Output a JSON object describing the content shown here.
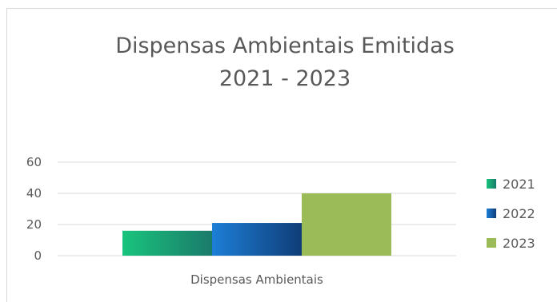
{
  "chart_data": {
    "type": "bar",
    "title": "Dispensas Ambientais Emitidas",
    "subtitle": "2021 - 2023",
    "categories": [
      "Dispensas Ambientais"
    ],
    "series": [
      {
        "name": "2021",
        "values": [
          16
        ],
        "color": "#1a9f75"
      },
      {
        "name": "2022",
        "values": [
          21
        ],
        "color": "#1565b8"
      },
      {
        "name": "2023",
        "values": [
          40
        ],
        "color": "#9bbb59"
      }
    ],
    "yticks": [
      "0",
      "20",
      "40",
      "60"
    ],
    "ylim": [
      0,
      60
    ],
    "grid": true,
    "legend": "right"
  }
}
